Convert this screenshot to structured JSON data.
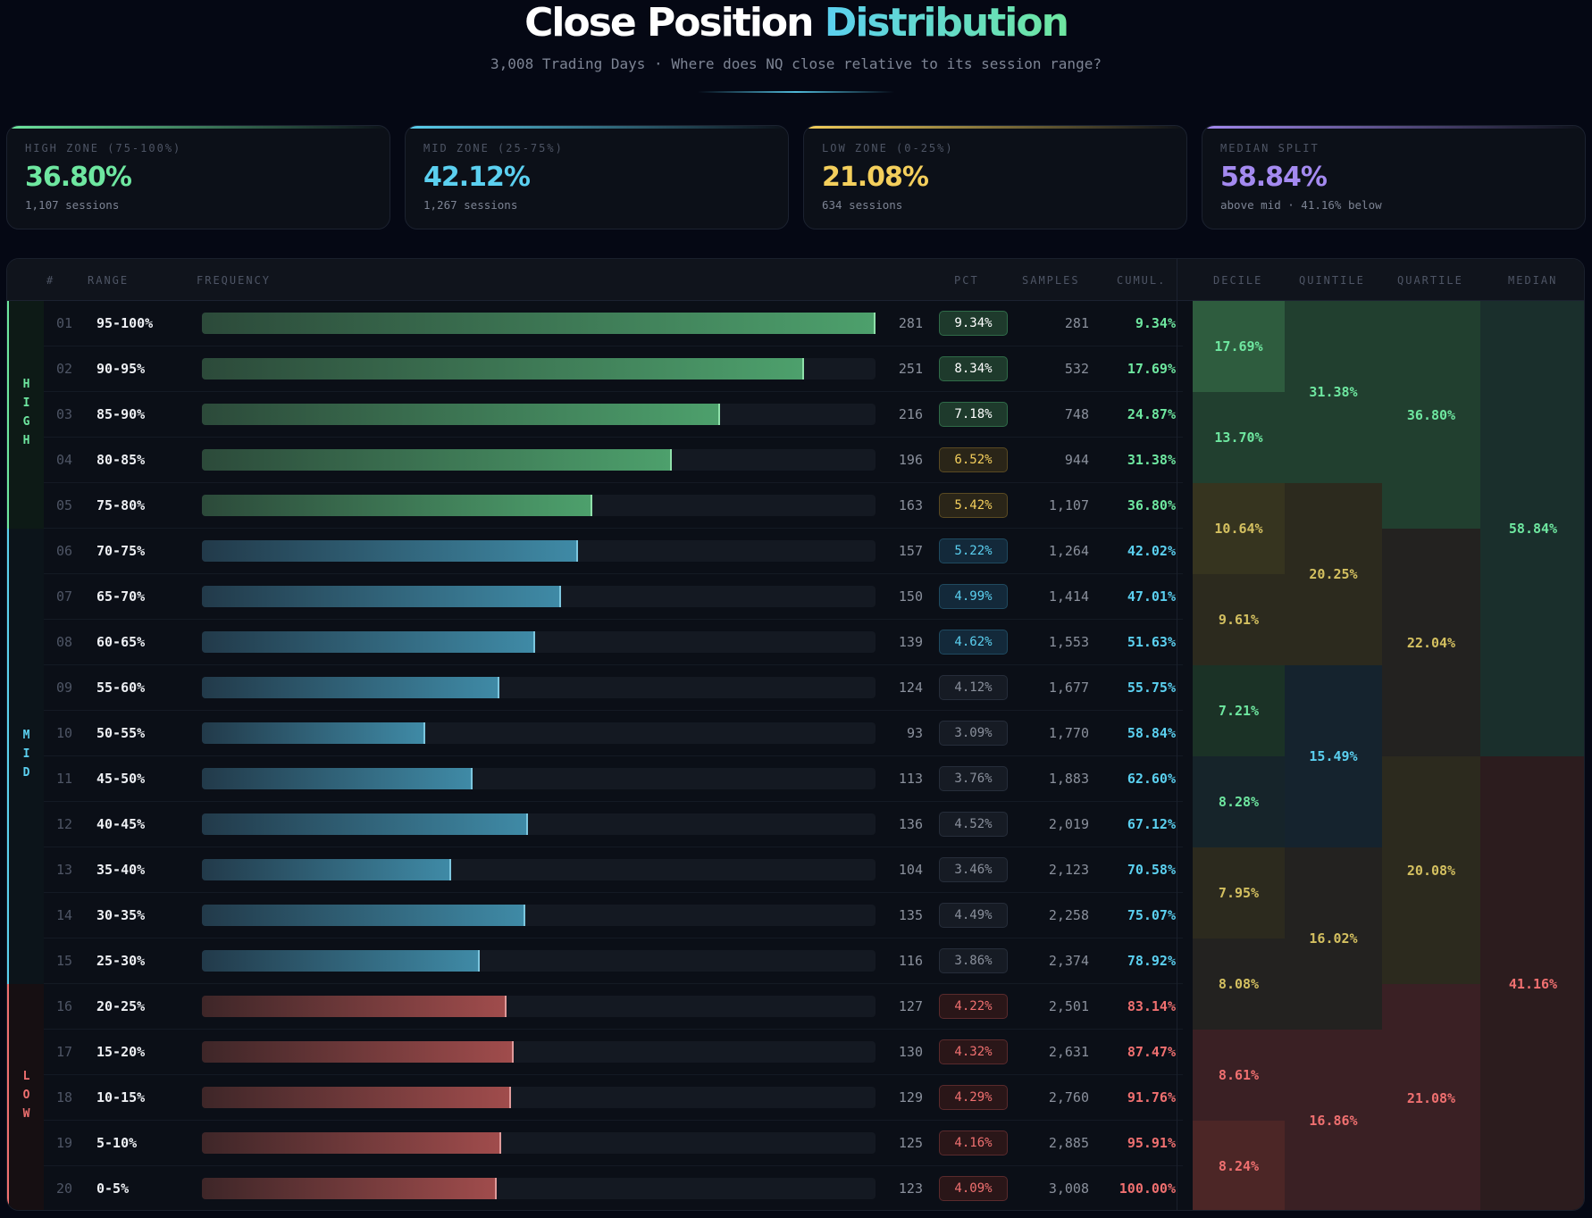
{
  "header": {
    "title_a": "Close Position",
    "title_b": "Distribution",
    "subtitle": "3,008 Trading Days · Where does NQ close relative to its session range?"
  },
  "cards": [
    {
      "label": "HIGH ZONE (75-100%)",
      "value": "36.80%",
      "note": "1,107 sessions",
      "color": "#6ee7a0"
    },
    {
      "label": "MID ZONE (25-75%)",
      "value": "42.12%",
      "note": "1,267 sessions",
      "color": "#5bd0f0"
    },
    {
      "label": "LOW ZONE (0-25%)",
      "value": "21.08%",
      "note": "634 sessions",
      "color": "#f4cf5c"
    },
    {
      "label": "MEDIAN SPLIT",
      "value": "58.84%",
      "note": "above mid · 41.16% below",
      "color": "#a48af0"
    }
  ],
  "columns": {
    "num": "#",
    "range": "RANGE",
    "freq": "FREQUENCY",
    "pct": "PCT",
    "samples": "SAMPLES",
    "cumul": "CUMUL.",
    "decile": "DECILE",
    "quintile": "QUINTILE",
    "quartile": "QUARTILE",
    "median": "MEDIAN"
  },
  "zones": [
    {
      "label": "HIGH",
      "color": "#6ee7a0"
    },
    {
      "label": "MID",
      "color": "#5bd0f0"
    },
    {
      "label": "LOW",
      "color": "#f07070"
    }
  ],
  "rows": [
    {
      "num": "01",
      "range": "95-100%",
      "count": 281,
      "pct": "9.34%",
      "samples": "281",
      "cumul": "9.34%",
      "zone": "high",
      "badge": "green"
    },
    {
      "num": "02",
      "range": "90-95%",
      "count": 251,
      "pct": "8.34%",
      "samples": "532",
      "cumul": "17.69%",
      "zone": "high",
      "badge": "green"
    },
    {
      "num": "03",
      "range": "85-90%",
      "count": 216,
      "pct": "7.18%",
      "samples": "748",
      "cumul": "24.87%",
      "zone": "high",
      "badge": "green"
    },
    {
      "num": "04",
      "range": "80-85%",
      "count": 196,
      "pct": "6.52%",
      "samples": "944",
      "cumul": "31.38%",
      "zone": "high",
      "badge": "yellow"
    },
    {
      "num": "05",
      "range": "75-80%",
      "count": 163,
      "pct": "5.42%",
      "samples": "1,107",
      "cumul": "36.80%",
      "zone": "high",
      "badge": "yellow"
    },
    {
      "num": "06",
      "range": "70-75%",
      "count": 157,
      "pct": "5.22%",
      "samples": "1,264",
      "cumul": "42.02%",
      "zone": "mid",
      "badge": "blue"
    },
    {
      "num": "07",
      "range": "65-70%",
      "count": 150,
      "pct": "4.99%",
      "samples": "1,414",
      "cumul": "47.01%",
      "zone": "mid",
      "badge": "blue"
    },
    {
      "num": "08",
      "range": "60-65%",
      "count": 139,
      "pct": "4.62%",
      "samples": "1,553",
      "cumul": "51.63%",
      "zone": "mid",
      "badge": "blue"
    },
    {
      "num": "09",
      "range": "55-60%",
      "count": 124,
      "pct": "4.12%",
      "samples": "1,677",
      "cumul": "55.75%",
      "zone": "mid",
      "badge": "gray"
    },
    {
      "num": "10",
      "range": "50-55%",
      "count": 93,
      "pct": "3.09%",
      "samples": "1,770",
      "cumul": "58.84%",
      "zone": "mid",
      "badge": "gray"
    },
    {
      "num": "11",
      "range": "45-50%",
      "count": 113,
      "pct": "3.76%",
      "samples": "1,883",
      "cumul": "62.60%",
      "zone": "mid",
      "badge": "gray"
    },
    {
      "num": "12",
      "range": "40-45%",
      "count": 136,
      "pct": "4.52%",
      "samples": "2,019",
      "cumul": "67.12%",
      "zone": "mid",
      "badge": "gray"
    },
    {
      "num": "13",
      "range": "35-40%",
      "count": 104,
      "pct": "3.46%",
      "samples": "2,123",
      "cumul": "70.58%",
      "zone": "mid",
      "badge": "gray"
    },
    {
      "num": "14",
      "range": "30-35%",
      "count": 135,
      "pct": "4.49%",
      "samples": "2,258",
      "cumul": "75.07%",
      "zone": "mid",
      "badge": "gray"
    },
    {
      "num": "15",
      "range": "25-30%",
      "count": 116,
      "pct": "3.86%",
      "samples": "2,374",
      "cumul": "78.92%",
      "zone": "mid",
      "badge": "gray"
    },
    {
      "num": "16",
      "range": "20-25%",
      "count": 127,
      "pct": "4.22%",
      "samples": "2,501",
      "cumul": "83.14%",
      "zone": "low",
      "badge": "red"
    },
    {
      "num": "17",
      "range": "15-20%",
      "count": 130,
      "pct": "4.32%",
      "samples": "2,631",
      "cumul": "87.47%",
      "zone": "low",
      "badge": "red"
    },
    {
      "num": "18",
      "range": "10-15%",
      "count": 129,
      "pct": "4.29%",
      "samples": "2,760",
      "cumul": "91.76%",
      "zone": "low",
      "badge": "red"
    },
    {
      "num": "19",
      "range": "5-10%",
      "count": 125,
      "pct": "4.16%",
      "samples": "2,885",
      "cumul": "95.91%",
      "zone": "low",
      "badge": "red"
    },
    {
      "num": "20",
      "range": "0-5%",
      "count": 123,
      "pct": "4.09%",
      "samples": "3,008",
      "cumul": "100.00%",
      "zone": "low",
      "badge": "red"
    }
  ],
  "decile": [
    {
      "v": "17.69%",
      "tone": "green-strong"
    },
    {
      "v": "13.70%",
      "tone": "green"
    },
    {
      "v": "10.64%",
      "tone": "yellow-strong"
    },
    {
      "v": "9.61%",
      "tone": "yellow"
    },
    {
      "v": "7.21%",
      "tone": "green-dim"
    },
    {
      "v": "8.28%",
      "tone": "teal-dim"
    },
    {
      "v": "7.95%",
      "tone": "yellow"
    },
    {
      "v": "8.08%",
      "tone": "yellow-dim"
    },
    {
      "v": "8.61%",
      "tone": "red"
    },
    {
      "v": "8.24%",
      "tone": "red-strong"
    }
  ],
  "quintile": [
    {
      "v": "31.38%",
      "tone": "green"
    },
    {
      "v": "20.25%",
      "tone": "yellow"
    },
    {
      "v": "15.49%",
      "tone": "blue-dim"
    },
    {
      "v": "16.02%",
      "tone": "yellow-dim"
    },
    {
      "v": "16.86%",
      "tone": "red"
    }
  ],
  "quartile": [
    {
      "v": "36.80%",
      "tone": "green"
    },
    {
      "v": "22.04%",
      "tone": "yellow-dim"
    },
    {
      "v": "20.08%",
      "tone": "yellow"
    },
    {
      "v": "21.08%",
      "tone": "red"
    }
  ],
  "median": [
    {
      "v": "58.84%",
      "tone": "teal"
    },
    {
      "v": "41.16%",
      "tone": "red-dim"
    }
  ]
}
